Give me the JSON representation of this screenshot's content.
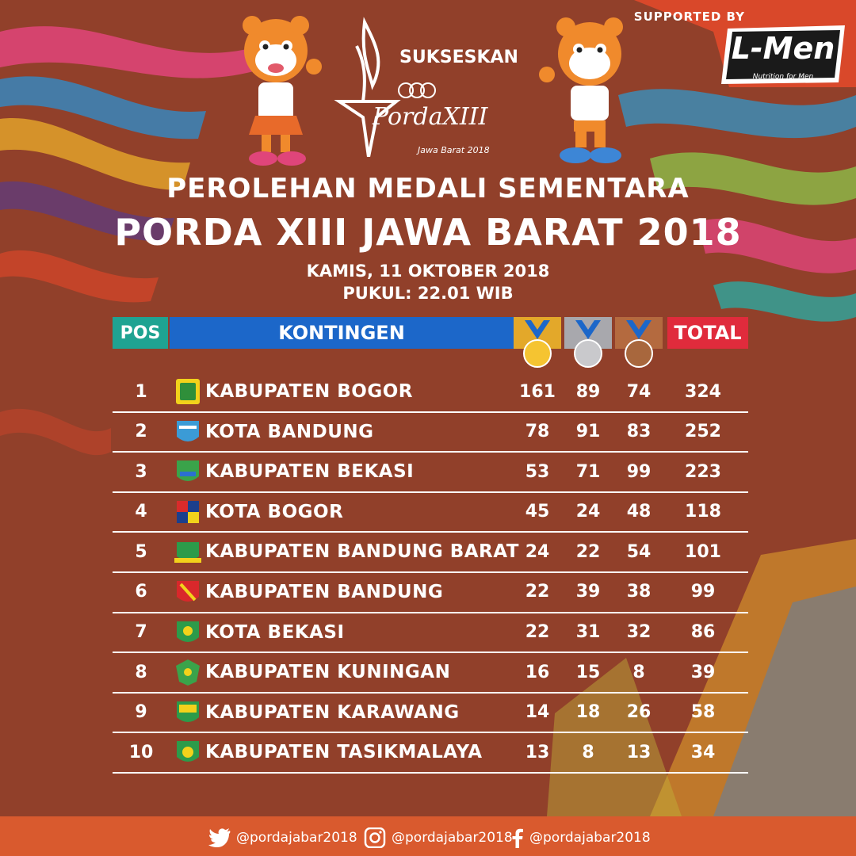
{
  "colors": {
    "background": "#91402a",
    "pos_header": "#1fa392",
    "name_header": "#1c67c9",
    "total_header": "#e02b3c",
    "footer": "#d95a2e",
    "gold": "#f5c431",
    "silver": "#c9c9cc",
    "bronze": "#a8673d"
  },
  "sponsor": {
    "label": "SUPPORTED BY",
    "brand": "L-Men",
    "tagline": "Nutrition for Men"
  },
  "event": {
    "word": "SUKSESKAN",
    "logo_text": "PordaXIII",
    "logo_subtext": "Jawa Barat 2018"
  },
  "title": {
    "line1": "PEROLEHAN MEDALI SEMENTARA",
    "line2": "PORDA XIII JAWA BARAT 2018"
  },
  "date": "KAMIS, 11 OKTOBER 2018",
  "time": "PUKUL: 22.01 WIB",
  "table": {
    "headers": {
      "pos": "POS",
      "kontingen": "KONTINGEN",
      "gold": "gold-medal-icon",
      "silver": "silver-medal-icon",
      "bronze": "bronze-medal-icon",
      "total": "TOTAL"
    },
    "rows": [
      {
        "pos": "1",
        "name": "KABUPATEN BOGOR",
        "gold": "161",
        "silver": "89",
        "bronze": "74",
        "total": "324"
      },
      {
        "pos": "2",
        "name": "KOTA BANDUNG",
        "gold": "78",
        "silver": "91",
        "bronze": "83",
        "total": "252"
      },
      {
        "pos": "3",
        "name": "KABUPATEN BEKASI",
        "gold": "53",
        "silver": "71",
        "bronze": "99",
        "total": "223"
      },
      {
        "pos": "4",
        "name": "KOTA BOGOR",
        "gold": "45",
        "silver": "24",
        "bronze": "48",
        "total": "118"
      },
      {
        "pos": "5",
        "name": "KABUPATEN BANDUNG BARAT",
        "gold": "24",
        "silver": "22",
        "bronze": "54",
        "total": "101"
      },
      {
        "pos": "6",
        "name": "KABUPATEN BANDUNG",
        "gold": "22",
        "silver": "39",
        "bronze": "38",
        "total": "99"
      },
      {
        "pos": "7",
        "name": "KOTA BEKASI",
        "gold": "22",
        "silver": "31",
        "bronze": "32",
        "total": "86"
      },
      {
        "pos": "8",
        "name": "KABUPATEN KUNINGAN",
        "gold": "16",
        "silver": "15",
        "bronze": "8",
        "total": "39"
      },
      {
        "pos": "9",
        "name": "KABUPATEN KARAWANG",
        "gold": "14",
        "silver": "18",
        "bronze": "26",
        "total": "58"
      },
      {
        "pos": "10",
        "name": "KABUPATEN TASIKMALAYA",
        "gold": "13",
        "silver": "8",
        "bronze": "13",
        "total": "34"
      }
    ]
  },
  "social": {
    "twitter": "@pordajabar2018",
    "instagram": "@pordajabar2018",
    "facebook": "@pordajabar2018"
  }
}
